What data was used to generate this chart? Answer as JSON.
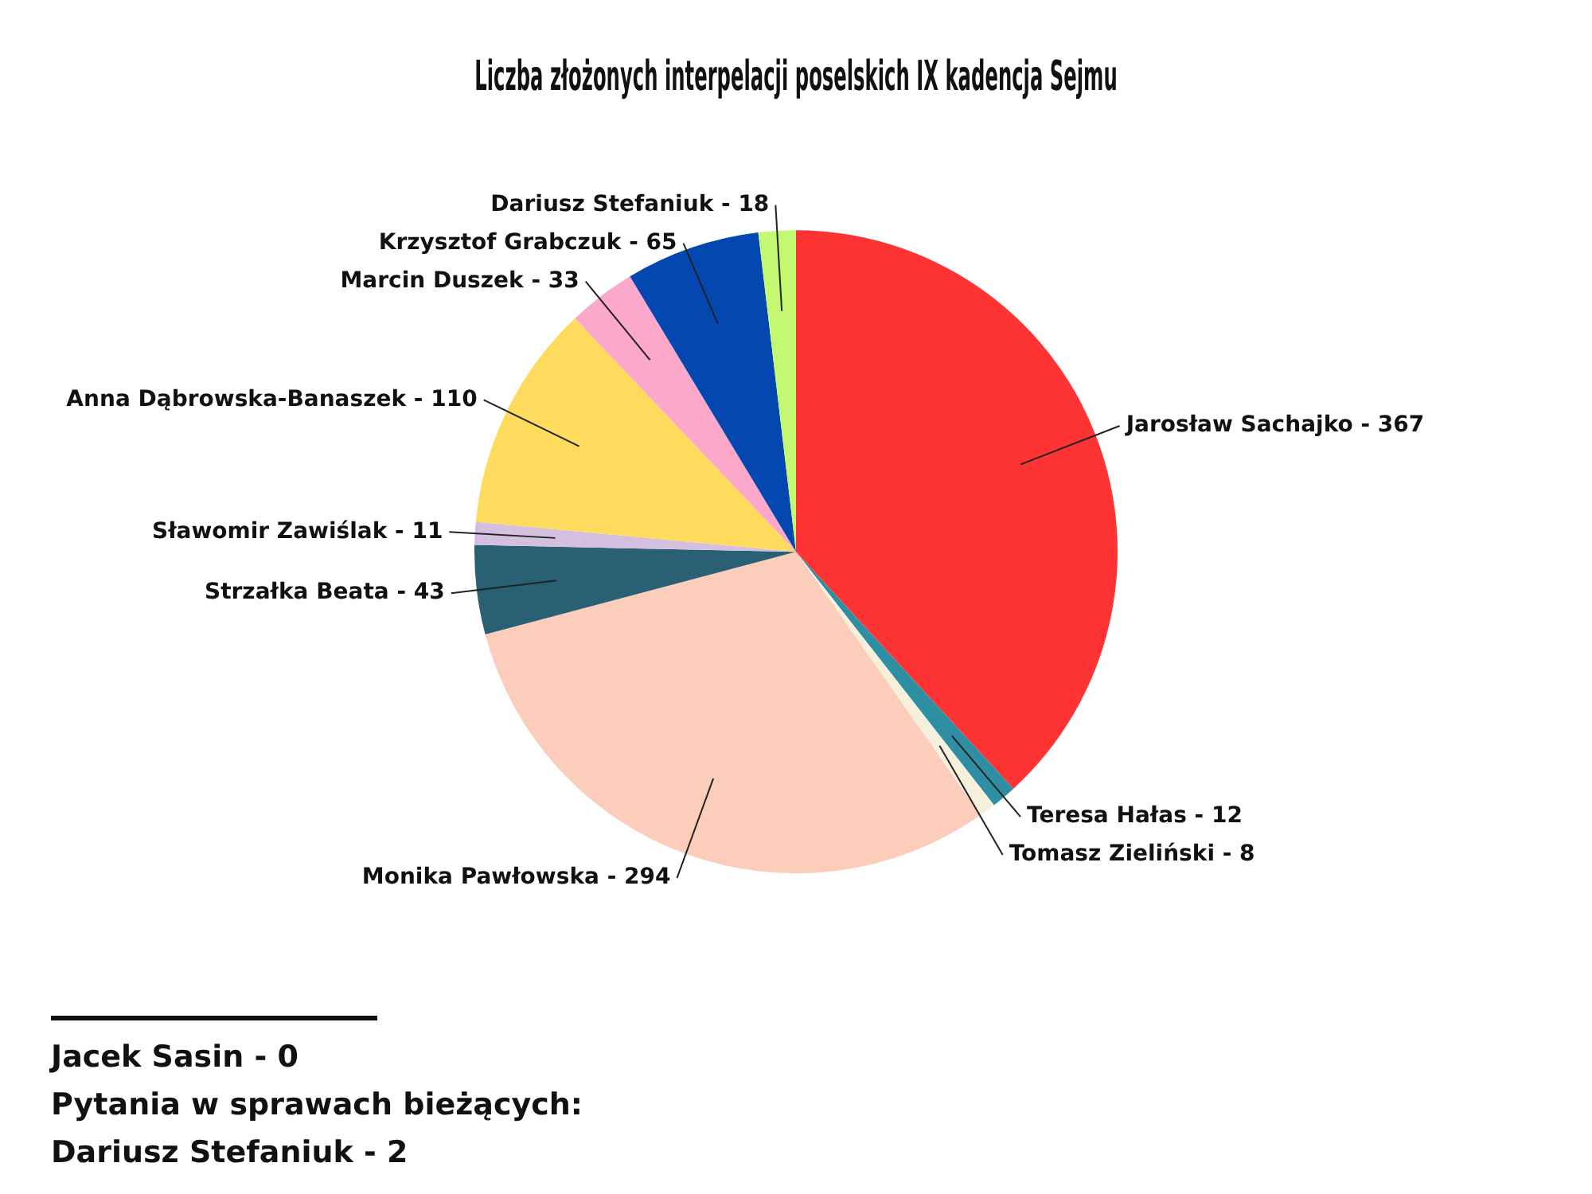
{
  "chart_data": {
    "type": "pie",
    "title": "Liczba złożonych interpelacji poselskich IX kadencja Sejmu",
    "categories": [
      "Jarosław Sachajko -",
      "Teresa Hałas -",
      "Tomasz Zieliński -",
      "Monika Pawłowska -",
      "Strzałka Beata -",
      "Sławomir Zawiślak -",
      "Anna Dąbrowska-Banaszek -",
      "Marcin Duszek -",
      "Krzysztof Grabczuk -",
      "Dariusz Stefaniuk -"
    ],
    "data_labels": true,
    "values": [
      367,
      12,
      8,
      294,
      43,
      11,
      110,
      33,
      65,
      18
    ],
    "colors": [
      "#fe3333",
      "#2e8fa3",
      "#f5f0dc",
      "#fdcdbb",
      "#2a6074",
      "#d4bfdf",
      "#fedb5d",
      "#fca8cb",
      "#0447b0",
      "#c4f871"
    ],
    "legend": false,
    "annotations": [
      "Jacek Sasin - 0",
      "Pytania w sprawach bieżących:",
      "Dariusz Stefaniuk - 2"
    ]
  }
}
